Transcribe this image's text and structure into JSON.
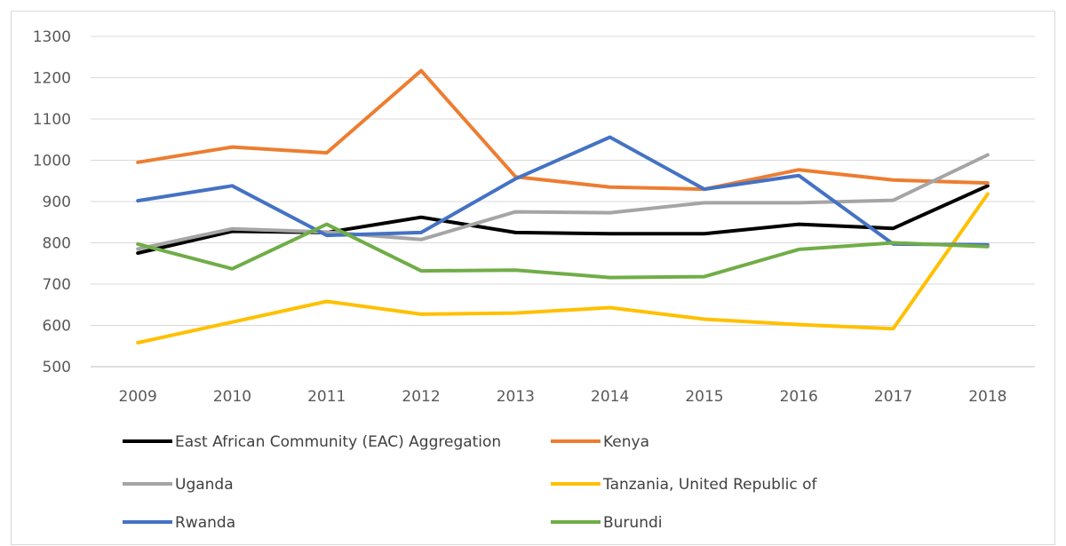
{
  "chart_data": {
    "type": "line",
    "x": [
      "2009",
      "2010",
      "2011",
      "2012",
      "2013",
      "2014",
      "2015",
      "2016",
      "2017",
      "2018"
    ],
    "ylim": [
      500,
      1300
    ],
    "yticks": [
      500,
      600,
      700,
      800,
      900,
      1000,
      1100,
      1200,
      1300
    ],
    "grid": true,
    "legend_position": "bottom",
    "series": [
      {
        "name": "East African Community (EAC) Aggregation",
        "color": "#000000",
        "values": [
          775,
          828,
          825,
          862,
          825,
          822,
          822,
          845,
          835,
          938
        ]
      },
      {
        "name": "Kenya",
        "color": "#ED7D31",
        "values": [
          995,
          1032,
          1018,
          1217,
          960,
          935,
          930,
          977,
          952,
          945
        ]
      },
      {
        "name": "Uganda",
        "color": "#A5A5A5",
        "values": [
          785,
          834,
          826,
          808,
          875,
          873,
          897,
          897,
          903,
          1013
        ]
      },
      {
        "name": "Tanzania, United Republic of",
        "color": "#FFC000",
        "values": [
          558,
          608,
          658,
          627,
          630,
          643,
          615,
          602,
          592,
          918
        ]
      },
      {
        "name": "Rwanda",
        "color": "#4472C4",
        "values": [
          902,
          938,
          818,
          825,
          955,
          1056,
          930,
          963,
          797,
          795
        ]
      },
      {
        "name": "Burundi",
        "color": "#70AD47",
        "values": [
          797,
          737,
          845,
          732,
          734,
          716,
          718,
          784,
          800,
          791
        ]
      }
    ]
  }
}
